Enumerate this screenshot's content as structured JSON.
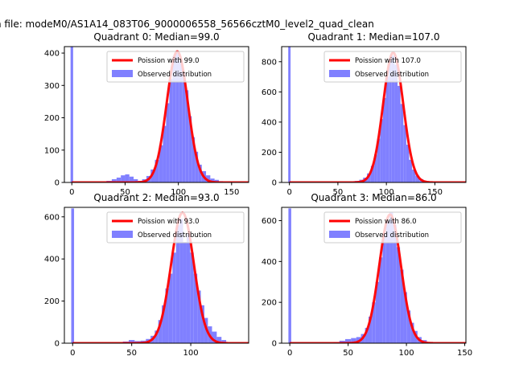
{
  "suptitle": "n file: modeM0/AS1A14_083T06_9000006558_56566cztM0_level2_quad_clean",
  "chart_data": [
    {
      "type": "bar",
      "title": "Quadrant 0: Median=99.0",
      "median": 99.0,
      "peak": 405,
      "spike_height": 420,
      "xlim": [
        -7,
        166
      ],
      "ylim": [
        0,
        420
      ],
      "xticks": [
        0,
        50,
        100,
        150
      ],
      "yticks": [
        0,
        100,
        200,
        300,
        400
      ],
      "xtick_labels": [
        "0",
        "50",
        "100",
        "150"
      ],
      "ytick_labels": [
        "0",
        "100",
        "200",
        "300",
        "400"
      ],
      "hist_x": [
        35,
        40,
        44,
        48,
        52,
        56,
        60,
        64,
        68,
        72,
        76,
        80,
        84,
        87,
        90,
        93,
        96,
        99,
        102,
        105,
        108,
        111,
        114,
        117,
        120,
        124,
        128,
        132,
        136,
        140
      ],
      "hist_y": [
        5,
        10,
        15,
        22,
        25,
        18,
        10,
        5,
        10,
        20,
        40,
        70,
        115,
        175,
        245,
        320,
        390,
        400,
        375,
        340,
        285,
        205,
        140,
        95,
        55,
        35,
        22,
        12,
        8,
        4
      ],
      "legend": [
        "Poission with 99.0",
        "Observed distribution"
      ]
    },
    {
      "type": "bar",
      "title": "Quadrant 1: Median=107.0",
      "median": 107.0,
      "peak": 860,
      "spike_height": 900,
      "xlim": [
        -8,
        182
      ],
      "ylim": [
        0,
        900
      ],
      "xticks": [
        0,
        50,
        100,
        150
      ],
      "yticks": [
        0,
        200,
        400,
        600,
        800
      ],
      "xtick_labels": [
        "0",
        "50",
        "100",
        "150"
      ],
      "ytick_labels": [
        "0",
        "200",
        "400",
        "600",
        "800"
      ],
      "hist_x": [
        55,
        60,
        65,
        70,
        74,
        78,
        82,
        86,
        89,
        92,
        95,
        98,
        101,
        104,
        107,
        110,
        113,
        116,
        119,
        122,
        125,
        128,
        132,
        136,
        140,
        145
      ],
      "hist_y": [
        2,
        4,
        6,
        10,
        18,
        32,
        60,
        110,
        185,
        290,
        420,
        560,
        700,
        820,
        840,
        780,
        640,
        520,
        380,
        250,
        150,
        85,
        45,
        22,
        10,
        4
      ],
      "legend": [
        "Poission with 107.0",
        "Observed distribution"
      ]
    },
    {
      "type": "bar",
      "title": "Quadrant 2: Median=93.0",
      "median": 93.0,
      "peak": 620,
      "spike_height": 640,
      "xlim": [
        -7,
        149
      ],
      "ylim": [
        0,
        645
      ],
      "xticks": [
        0,
        50,
        100
      ],
      "yticks": [
        0,
        200,
        400,
        600
      ],
      "xtick_labels": [
        "0",
        "50",
        "100"
      ],
      "ytick_labels": [
        "0",
        "200",
        "400",
        "600"
      ],
      "hist_x": [
        45,
        50,
        55,
        60,
        64,
        68,
        71,
        74,
        77,
        80,
        83,
        86,
        89,
        92,
        95,
        98,
        101,
        104,
        107,
        110,
        113,
        116,
        120,
        124,
        128
      ],
      "hist_y": [
        8,
        15,
        10,
        12,
        20,
        35,
        60,
        110,
        180,
        260,
        330,
        430,
        560,
        590,
        480,
        520,
        430,
        330,
        250,
        180,
        120,
        80,
        55,
        30,
        15
      ],
      "legend": [
        "Poission with 93.0",
        "Observed distribution"
      ]
    },
    {
      "type": "bar",
      "title": "Quadrant 3: Median=86.0",
      "median": 86.0,
      "peak": 630,
      "spike_height": 660,
      "xlim": [
        -7,
        151
      ],
      "ylim": [
        0,
        665
      ],
      "xticks": [
        0,
        50,
        100,
        150
      ],
      "yticks": [
        0,
        200,
        400,
        600
      ],
      "xtick_labels": [
        "0",
        "50",
        "100",
        "150"
      ],
      "ytick_labels": [
        "0",
        "200",
        "400",
        "600"
      ],
      "hist_x": [
        40,
        45,
        50,
        55,
        59,
        63,
        66,
        69,
        72,
        75,
        78,
        81,
        84,
        87,
        90,
        93,
        96,
        99,
        102,
        105,
        108,
        111,
        115,
        120
      ],
      "hist_y": [
        5,
        12,
        20,
        25,
        30,
        45,
        75,
        130,
        200,
        300,
        420,
        540,
        600,
        640,
        580,
        470,
        360,
        250,
        160,
        100,
        60,
        30,
        15,
        6
      ],
      "legend": [
        "Poission with 86.0",
        "Observed distribution"
      ]
    }
  ],
  "colors": {
    "hist": "#8080ff",
    "poisson": "#ff0000"
  }
}
